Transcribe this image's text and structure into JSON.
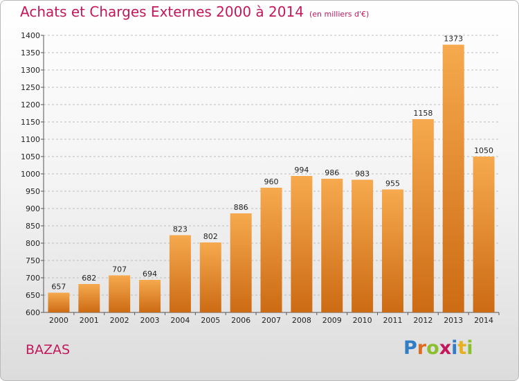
{
  "header": {
    "title": "Achats et Charges Externes 2000 à 2014",
    "subtitle": "(en milliers d'€)"
  },
  "footer": {
    "place": "BAZAS",
    "logo_text": "Proxiti",
    "logo_colors": [
      "#2f7dc6",
      "#e06a1f",
      "#8cbf2e",
      "#c2185b",
      "#2f7dc6",
      "#e8b020",
      "#8cbf2e"
    ]
  },
  "colors": {
    "bar_top": "#f6a94e",
    "bar_bottom": "#cc6b14",
    "grid": "#bdbdbd",
    "title": "#c2185b"
  },
  "chart_data": {
    "type": "bar",
    "title": "Achats et Charges Externes 2000 à 2014",
    "subtitle": "(en milliers d'€)",
    "categories": [
      "2000",
      "2001",
      "2002",
      "2003",
      "2004",
      "2005",
      "2006",
      "2007",
      "2008",
      "2009",
      "2010",
      "2011",
      "2012",
      "2013",
      "2014"
    ],
    "values": [
      657,
      682,
      707,
      694,
      823,
      802,
      886,
      960,
      994,
      986,
      983,
      955,
      1158,
      1373,
      1050
    ],
    "data_labels": [
      "657",
      "682",
      "707",
      "694",
      "823",
      "802",
      "886",
      "960",
      "994",
      "986",
      "983",
      "955",
      "1158",
      "1373",
      "1050"
    ],
    "ylim": [
      600,
      1400
    ],
    "yticks": [
      600,
      650,
      700,
      750,
      800,
      850,
      900,
      950,
      1000,
      1050,
      1100,
      1150,
      1200,
      1250,
      1300,
      1350,
      1400
    ],
    "grid": true,
    "legend": "none"
  }
}
